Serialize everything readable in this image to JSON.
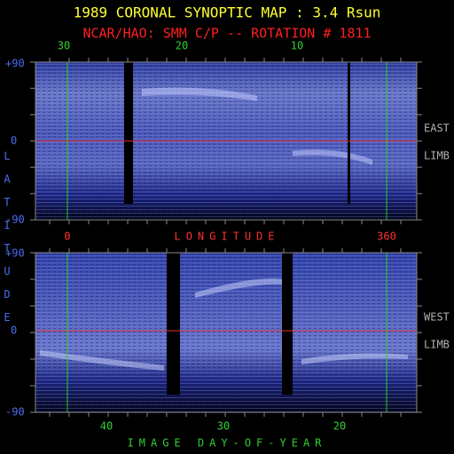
{
  "header": {
    "title": "1989 CORONAL SYNOPTIC MAP : 3.4 Rsun",
    "subtitle": "NCAR/HAO: SMM C/P -- ROTATION # 1811"
  },
  "top_panel": {
    "top_ticks": [
      "30",
      "20",
      "10"
    ],
    "y_ticks": [
      "+90",
      "0",
      "-90"
    ],
    "bottom_ticks": [
      "0",
      "360"
    ],
    "x_label": "LONGITUDE",
    "side_label": [
      "EAST",
      "LIMB"
    ]
  },
  "bottom_panel": {
    "y_ticks": [
      "+90",
      "0",
      "-90"
    ],
    "bottom_ticks": [
      "40",
      "30",
      "20"
    ],
    "x_label": "IMAGE DAY-OF-YEAR",
    "side_label": [
      "WEST",
      "LIMB"
    ]
  },
  "y_label": "LATITUDE"
}
